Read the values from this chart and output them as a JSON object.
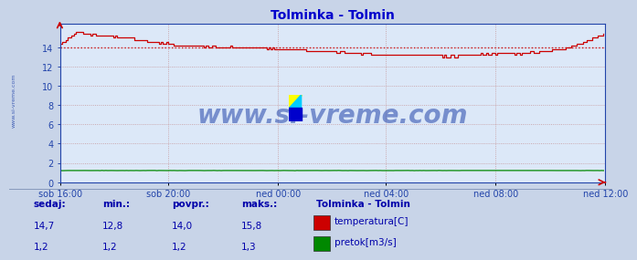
{
  "title": "Tolminka - Tolmin",
  "title_color": "#0000cc",
  "bg_color": "#c8d4e8",
  "plot_bg_color": "#dce8f8",
  "grid_color": "#c08080",
  "grid_style": ":",
  "xlabel_ticks": [
    "sob 16:00",
    "sob 20:00",
    "ned 00:00",
    "ned 04:00",
    "ned 08:00",
    "ned 12:00"
  ],
  "yticks": [
    0,
    2,
    4,
    6,
    8,
    10,
    12,
    14
  ],
  "ylim": [
    0,
    16.5
  ],
  "temp_avg": 14.0,
  "temp_color": "#cc0000",
  "flow_color": "#008800",
  "avg_line_color": "#cc0000",
  "avg_line_style": ":",
  "watermark": "www.si-vreme.com",
  "watermark_color": "#2244aa",
  "legend_title": "Tolminka - Tolmin",
  "legend_title_color": "#0000aa",
  "legend_items": [
    "temperatura[C]",
    "pretok[m3/s]"
  ],
  "legend_colors": [
    "#cc0000",
    "#008800"
  ],
  "stats_labels": [
    "sedaj:",
    "min.:",
    "povpr.:",
    "maks.:"
  ],
  "stats_temp": [
    "14,7",
    "12,8",
    "14,0",
    "15,8"
  ],
  "stats_flow": [
    "1,2",
    "1,2",
    "1,2",
    "1,3"
  ],
  "sidebar_text": "www.si-vreme.com",
  "sidebar_color": "#2244aa",
  "axis_color": "#2244aa",
  "tick_color": "#2244aa",
  "spine_color": "#2244aa"
}
